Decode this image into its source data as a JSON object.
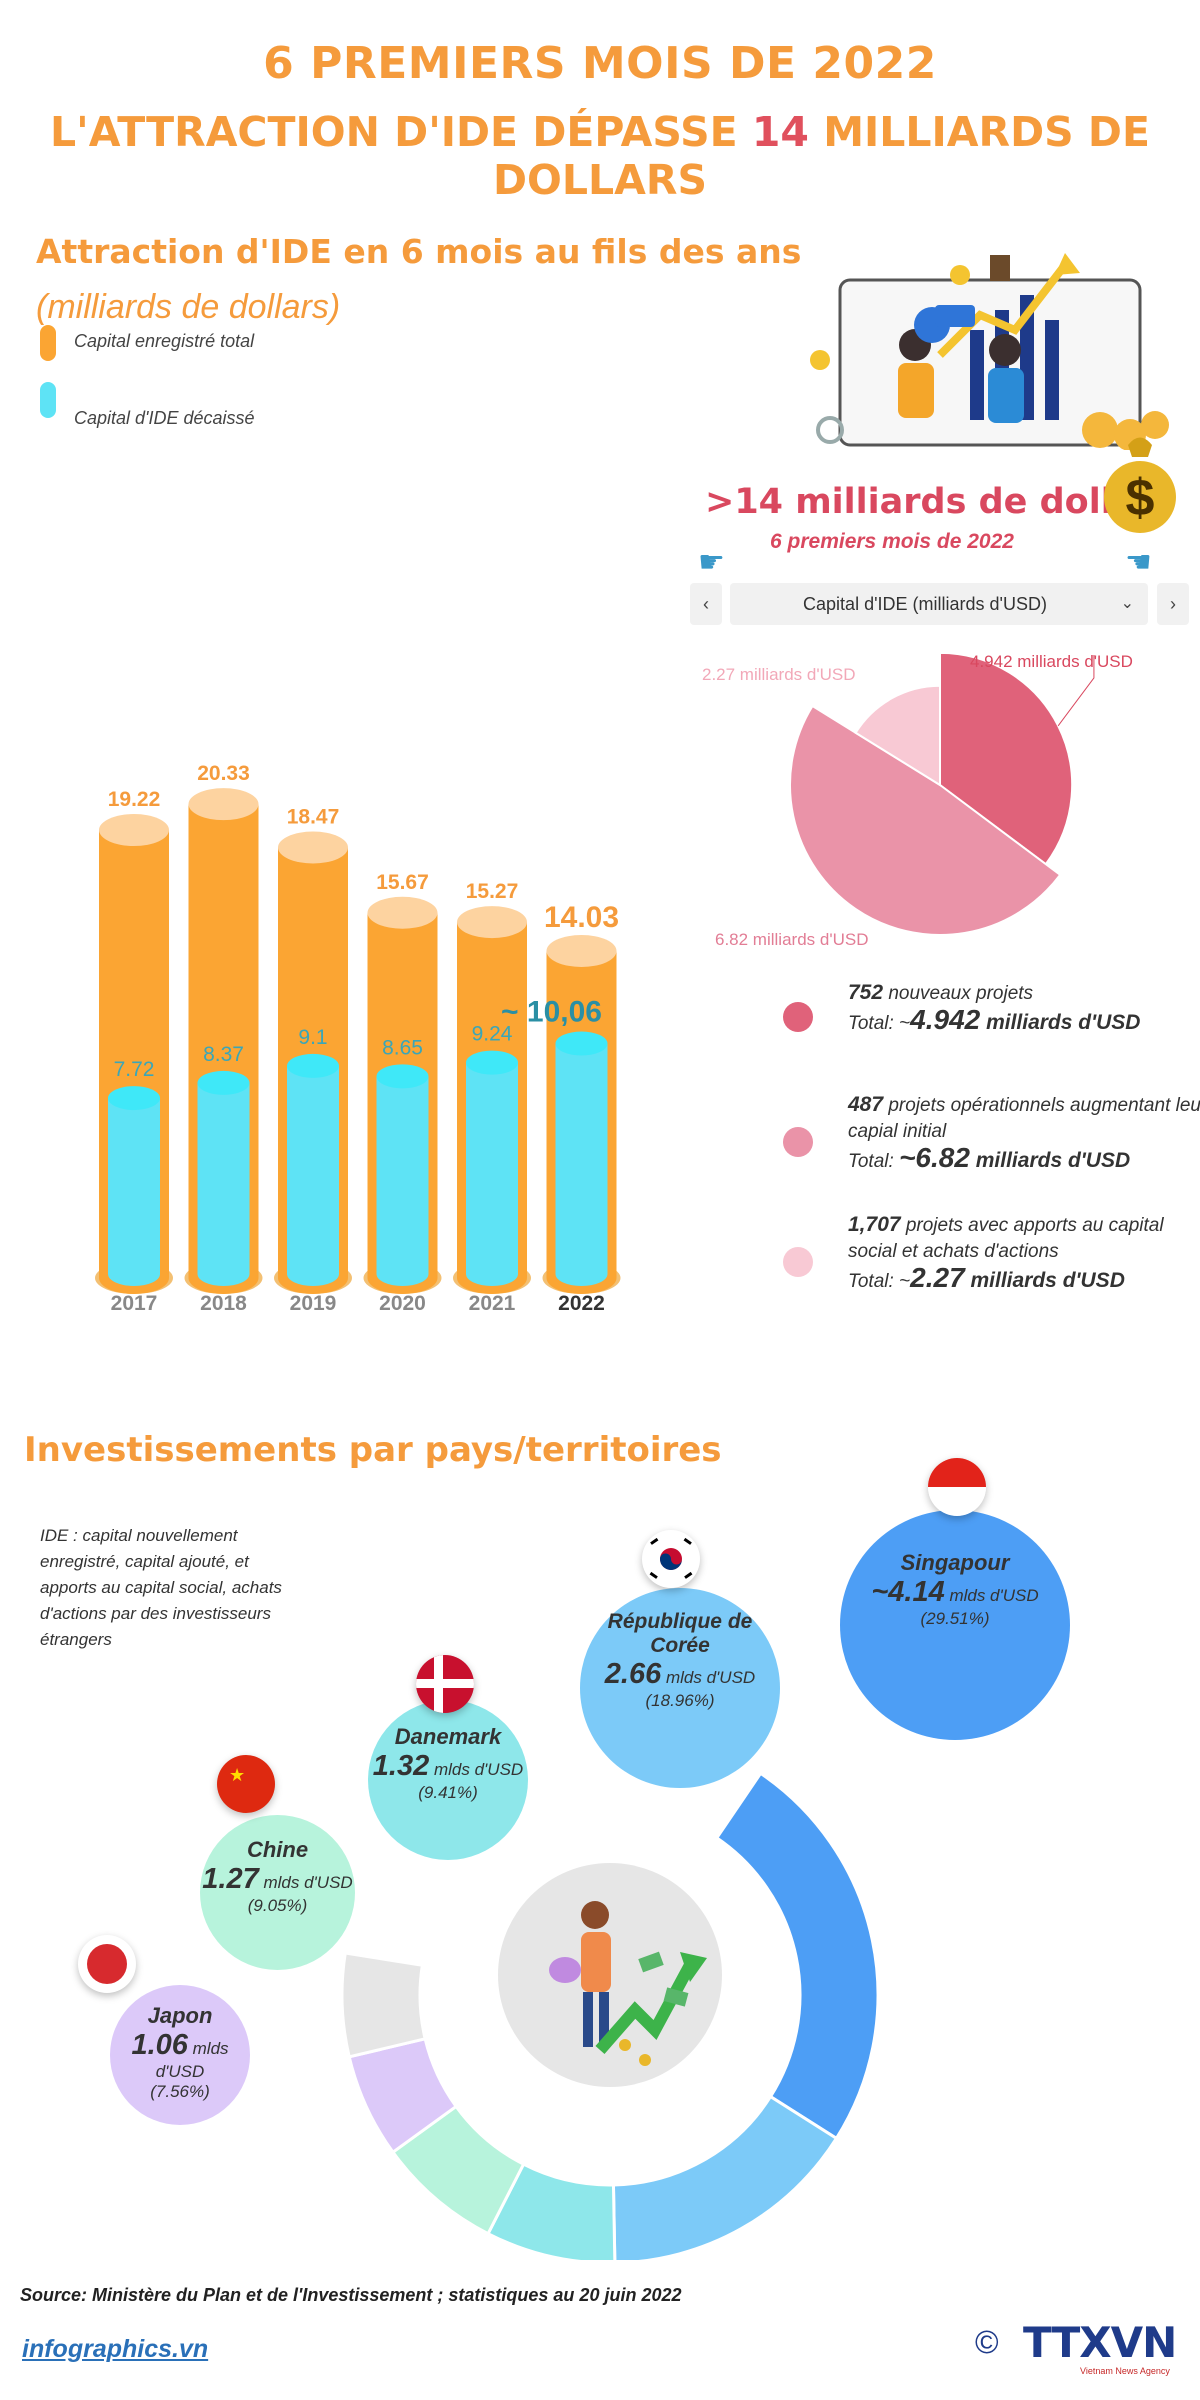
{
  "header": {
    "line1": "6 PREMIERS MOIS DE 2022",
    "line2_before": "L'ATTRACTION D'IDE DÉPASSE ",
    "line2_number": "14",
    "line2_after": " MILLIARDS DE DOLLARS"
  },
  "chart_data": [
    {
      "type": "bar",
      "title": "Attraction d'IDE en 6 mois au fils des ans",
      "subtitle": "(milliards de dollars)",
      "categories": [
        "2017",
        "2018",
        "2019",
        "2020",
        "2021",
        "2022"
      ],
      "series": [
        {
          "name": "Capital enregistré total",
          "values": [
            19.22,
            20.33,
            18.47,
            15.67,
            15.27,
            14.03
          ],
          "color": "#fba533"
        },
        {
          "name": "Capital d'IDE décaissé",
          "values": [
            7.72,
            8.37,
            9.1,
            8.65,
            9.24,
            10.06
          ],
          "color": "#5ee3f5"
        }
      ],
      "value_labels": {
        "total": [
          "19.22",
          "20.33",
          "18.47",
          "15.67",
          "15.27",
          "14.03"
        ],
        "disbursed": [
          "7.72",
          "8.37",
          "9.1",
          "8.65",
          "9.24",
          "~ 10,06"
        ]
      },
      "ylim": [
        0,
        21
      ],
      "grid": false,
      "legend_position": "top-left"
    },
    {
      "type": "pie",
      "title": "Capital d'IDE (milliards d'USD)",
      "labels": [
        "4.942 milliards d'USD",
        "6.82 milliards d'USD",
        "2.27 milliards d'USD"
      ],
      "values": [
        4.942,
        6.82,
        2.27
      ],
      "colors": [
        "#e0627a",
        "#ea93a8",
        "#f8c9d4"
      ]
    },
    {
      "type": "bar",
      "title": "Investissements par pays/territoires",
      "categories": [
        "Singapour",
        "République de Corée",
        "Danemark",
        "Chine",
        "Japon"
      ],
      "values": [
        4.14,
        2.66,
        1.32,
        1.27,
        1.06
      ],
      "percent": [
        29.51,
        18.96,
        9.41,
        9.05,
        7.56
      ],
      "colors": [
        "#4d9ef5",
        "#7ccaf8",
        "#8ee7ea",
        "#b7f3dc",
        "#dcc9f9"
      ]
    }
  ],
  "highlight": {
    "amount": ">14 milliards de dollars",
    "period": "6 premiers mois de 2022"
  },
  "dropdown": {
    "label": "Capital d'IDE (milliards d'USD)",
    "prev": "‹",
    "next": "›",
    "chevron": "⌄"
  },
  "breakdown": [
    {
      "count": "752",
      "desc": " nouveaux projets",
      "total_prefix": "Total: ~",
      "total": "4.942",
      "unit": " milliards d'USD",
      "color": "#e0627a"
    },
    {
      "count": "487",
      "desc": " projets opérationnels augmentant leur capial initial",
      "total_prefix": "Total: ",
      "total": "~6.82",
      "unit": " milliards d'USD",
      "color": "#ea93a8"
    },
    {
      "count": "1,707",
      "desc": " projets avec apports au capital social et achats d'actions",
      "total_prefix": "Total: ~",
      "total": "2.27",
      "unit": " milliards d'USD",
      "color": "#f8c9d4"
    }
  ],
  "countries": {
    "note": "IDE : capital nouvellement enregistré, capital ajouté, et apports au capital social, achats d'actions par des investisseurs étrangers",
    "unit": " mlds d'USD",
    "items": [
      {
        "name": "Singapour",
        "value": "~4.14",
        "pct": "(29.51%)"
      },
      {
        "name": "République de Corée",
        "value": "2.66",
        "pct": "(18.96%)"
      },
      {
        "name": "Danemark",
        "value": "1.32",
        "pct": "(9.41%)"
      },
      {
        "name": "Chine",
        "value": "1.27",
        "pct": "(9.05%)"
      },
      {
        "name": "Japon",
        "value": "1.06",
        "pct": "(7.56%)"
      }
    ]
  },
  "footer": {
    "source": "Source: Ministère du Plan et de l'Investissement ; statistiques au 20 juin 2022",
    "site": "infographics.vn",
    "logo_text": "TTXVN",
    "logo_sub": "Vietnam News Agency",
    "copyright": "©"
  },
  "icons": [
    "money-bag-icon",
    "pointer-hand-icon",
    "chevron-left-icon",
    "chevron-right-icon",
    "chevron-down-icon"
  ]
}
